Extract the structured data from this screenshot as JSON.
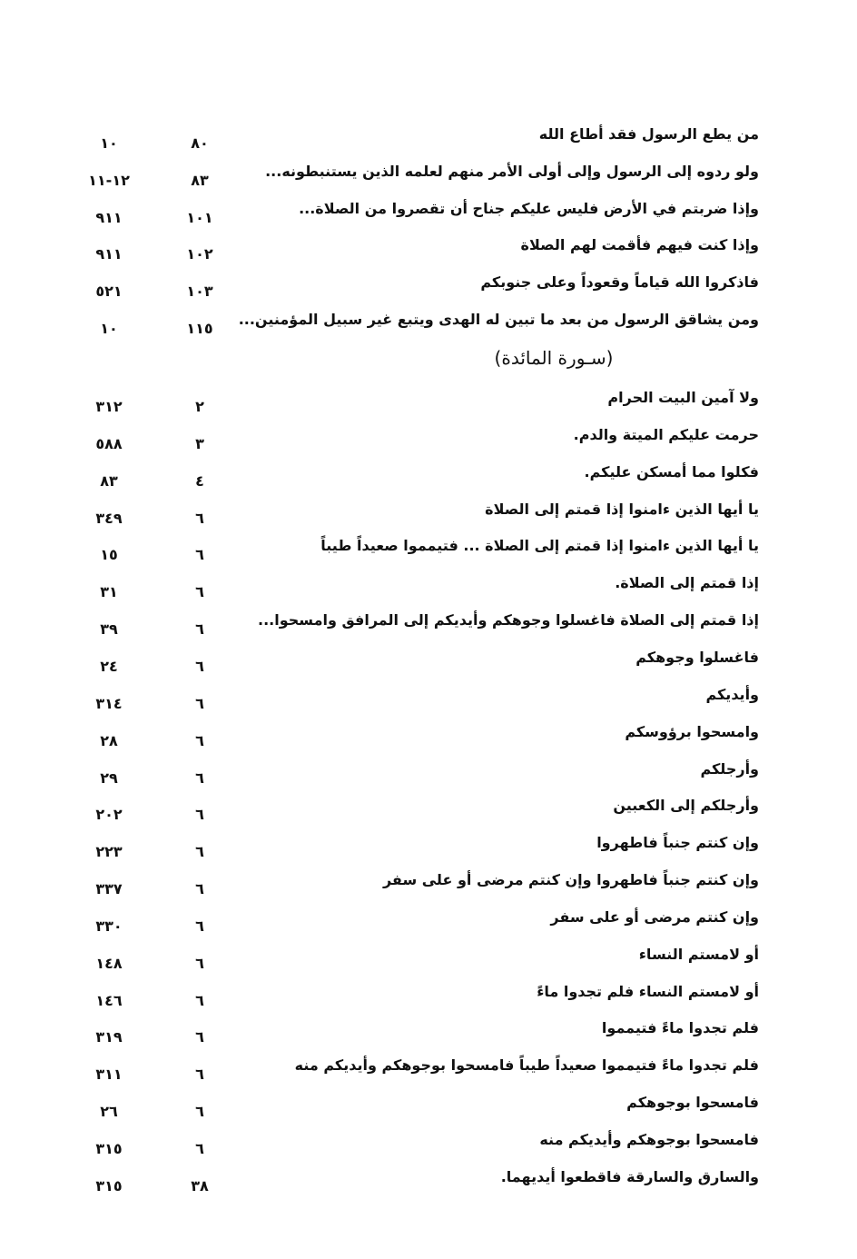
{
  "entries_before": [
    {
      "verse": "من يطع الرسول فقد أطاع الله",
      "ayah": "٨٠",
      "page": "١٠"
    },
    {
      "verse": "ولو ردوه إلى الرسول وإلى أولى الأمر منهم لعلمه الذين يستنبطونه...",
      "ayah": "٨٣",
      "page": "١٢-١١"
    },
    {
      "verse": "وإذا ضربتم في الأرض فليس عليكم جناح أن تقصروا من الصلاة...",
      "ayah": "١٠١",
      "page": "٩١١"
    },
    {
      "verse": "وإذا كنت فيهم فأقمت لهم الصلاة",
      "ayah": "١٠٢",
      "page": "٩١١"
    },
    {
      "verse": "فاذكروا الله قياماً وقعوداً وعلى جنوبكم",
      "ayah": "١٠٣",
      "page": "٥٢١"
    },
    {
      "verse": "ومن يشاقق الرسول من بعد ما تبين له الهدى ويتبع غير سبيل المؤمنين...",
      "ayah": "١١٥",
      "page": "١٠"
    }
  ],
  "surah_heading": "(سـورة المائدة)",
  "entries_after": [
    {
      "verse": "ولا آمين البيت الحرام",
      "ayah": "٢",
      "page": "٣١٢"
    },
    {
      "verse": "حرمت عليكم الميتة والدم.",
      "ayah": "٣",
      "page": "٥٨٨"
    },
    {
      "verse": "فكلوا مما أمسكن عليكم.",
      "ayah": "٤",
      "page": "٨٣"
    },
    {
      "verse": "يا أيها الذين ءامنوا إذا قمتم إلى الصلاة",
      "ayah": "٦",
      "page": "٣٤٩"
    },
    {
      "verse": "يا أيها الذين ءامنوا إذا قمتم إلى الصلاة ... فتيمموا صعيداً طيباً",
      "ayah": "٦",
      "page": "١٥"
    },
    {
      "verse": "إذا قمتم إلى الصلاة.",
      "ayah": "٦",
      "page": "٣١"
    },
    {
      "verse": "إذا قمتم إلى الصلاة فاغسلوا وجوهكم وأيديكم إلى المرافق وامسحوا...",
      "ayah": "٦",
      "page": "٣٩"
    },
    {
      "verse": "فاغسلوا وجوهكم",
      "ayah": "٦",
      "page": "٢٤"
    },
    {
      "verse": "وأيديكم",
      "ayah": "٦",
      "page": "٣١٤"
    },
    {
      "verse": "وامسحوا برؤوسكم",
      "ayah": "٦",
      "page": "٢٨"
    },
    {
      "verse": "وأرجلكم",
      "ayah": "٦",
      "page": "٢٩"
    },
    {
      "verse": "وأرجلكم إلى الكعبين",
      "ayah": "٦",
      "page": "٢٠٢"
    },
    {
      "verse": "وإن كنتم جنباً فاطهروا",
      "ayah": "٦",
      "page": "٢٢٣"
    },
    {
      "verse": "وإن كنتم جنباً فاطهروا وإن كنتم مرضى أو على سفر",
      "ayah": "٦",
      "page": "٣٣٧"
    },
    {
      "verse": "وإن كنتم مرضى أو على سفر",
      "ayah": "٦",
      "page": "٣٣٠"
    },
    {
      "verse": "أو لامستم النساء",
      "ayah": "٦",
      "page": "١٤٨"
    },
    {
      "verse": "أو لامستم النساء فلم تجدوا ماءً",
      "ayah": "٦",
      "page": "١٤٦"
    },
    {
      "verse": "فلم تجدوا ماءً فتيمموا",
      "ayah": "٦",
      "page": "٣١٩"
    },
    {
      "verse": "فلم تجدوا ماءً فتيمموا صعيداً طيباً فامسحوا بوجوهكم وأيديكم منه",
      "ayah": "٦",
      "page": "٣١١"
    },
    {
      "verse": "فامسحوا بوجوهكم",
      "ayah": "٦",
      "page": "٢٦"
    },
    {
      "verse": "فامسحوا بوجوهكم وأيديكم منه",
      "ayah": "٦",
      "page": "٣١٥"
    },
    {
      "verse": "والسارق والسارقة فاقطعوا أيديهما.",
      "ayah": "٣٨",
      "page": "٣١٥"
    }
  ]
}
